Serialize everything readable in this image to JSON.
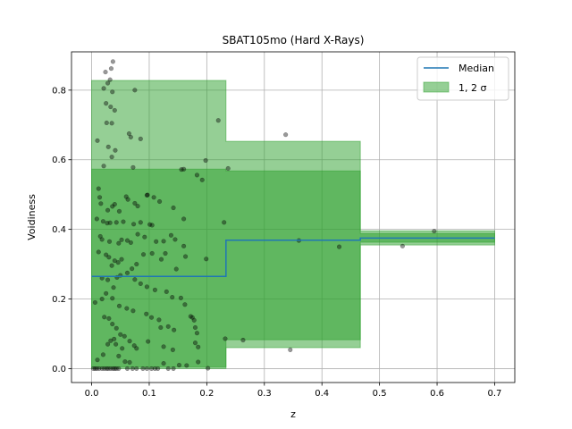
{
  "chart_data": {
    "type": "line",
    "title": "SBAT105mo (Hard X-Rays)",
    "xlabel": "z",
    "ylabel": "Voidiness",
    "xlim": [
      -0.035,
      0.735
    ],
    "ylim": [
      -0.04,
      0.91
    ],
    "x_ticks": [
      0.0,
      0.1,
      0.2,
      0.3,
      0.4,
      0.5,
      0.6,
      0.7
    ],
    "x_tick_labels": [
      "0.0",
      "0.1",
      "0.2",
      "0.3",
      "0.4",
      "0.5",
      "0.6",
      "0.7"
    ],
    "y_ticks": [
      0.0,
      0.2,
      0.4,
      0.6,
      0.8
    ],
    "y_tick_labels": [
      "0.0",
      "0.2",
      "0.4",
      "0.6",
      "0.8"
    ],
    "grid": true,
    "legend_position": "top-right",
    "legend": [
      {
        "label": "Median",
        "kind": "line",
        "color": "#1f77b4"
      },
      {
        "label": "1, 2 σ",
        "kind": "patch",
        "color": "#2ca02c"
      }
    ],
    "bins": [
      {
        "x0": 0.0,
        "x1": 0.2333,
        "median": 0.265,
        "s1_low": 0.005,
        "s1_high": 0.573,
        "s2_low": 0.0,
        "s2_high": 0.828
      },
      {
        "x0": 0.2333,
        "x1": 0.4667,
        "median": 0.369,
        "s1_low": 0.083,
        "s1_high": 0.568,
        "s2_low": 0.06,
        "s2_high": 0.653
      },
      {
        "x0": 0.4667,
        "x1": 0.7,
        "median": 0.375,
        "s1_low": 0.363,
        "s1_high": 0.388,
        "s2_low": 0.355,
        "s2_high": 0.396
      }
    ],
    "scatter": {
      "color": "#000000",
      "alpha": 0.4,
      "points": [
        [
          0.037,
          0.882
        ],
        [
          0.024,
          0.852
        ],
        [
          0.034,
          0.862
        ],
        [
          0.032,
          0.83
        ],
        [
          0.028,
          0.82
        ],
        [
          0.036,
          0.795
        ],
        [
          0.021,
          0.805
        ],
        [
          0.075,
          0.8
        ],
        [
          0.22,
          0.713
        ],
        [
          0.025,
          0.762
        ],
        [
          0.033,
          0.752
        ],
        [
          0.04,
          0.742
        ],
        [
          0.026,
          0.706
        ],
        [
          0.035,
          0.705
        ],
        [
          0.065,
          0.675
        ],
        [
          0.068,
          0.665
        ],
        [
          0.085,
          0.66
        ],
        [
          0.337,
          0.672
        ],
        [
          0.029,
          0.637
        ],
        [
          0.041,
          0.627
        ],
        [
          0.01,
          0.655
        ],
        [
          0.021,
          0.582
        ],
        [
          0.035,
          0.608
        ],
        [
          0.072,
          0.578
        ],
        [
          0.156,
          0.572
        ],
        [
          0.16,
          0.573
        ],
        [
          0.183,
          0.556
        ],
        [
          0.192,
          0.542
        ],
        [
          0.198,
          0.598
        ],
        [
          0.237,
          0.575
        ],
        [
          0.012,
          0.517
        ],
        [
          0.014,
          0.492
        ],
        [
          0.016,
          0.474
        ],
        [
          0.028,
          0.455
        ],
        [
          0.036,
          0.466
        ],
        [
          0.04,
          0.472
        ],
        [
          0.048,
          0.452
        ],
        [
          0.06,
          0.494
        ],
        [
          0.063,
          0.486
        ],
        [
          0.075,
          0.475
        ],
        [
          0.08,
          0.467
        ],
        [
          0.096,
          0.498
        ],
        [
          0.097,
          0.499
        ],
        [
          0.108,
          0.492
        ],
        [
          0.118,
          0.48
        ],
        [
          0.142,
          0.462
        ],
        [
          0.16,
          0.43
        ],
        [
          0.009,
          0.43
        ],
        [
          0.02,
          0.423
        ],
        [
          0.027,
          0.418
        ],
        [
          0.032,
          0.419
        ],
        [
          0.043,
          0.42
        ],
        [
          0.055,
          0.422
        ],
        [
          0.073,
          0.415
        ],
        [
          0.085,
          0.42
        ],
        [
          0.101,
          0.414
        ],
        [
          0.105,
          0.412
        ],
        [
          0.23,
          0.42
        ],
        [
          0.015,
          0.38
        ],
        [
          0.018,
          0.371
        ],
        [
          0.031,
          0.365
        ],
        [
          0.047,
          0.36
        ],
        [
          0.052,
          0.37
        ],
        [
          0.062,
          0.368
        ],
        [
          0.068,
          0.362
        ],
        [
          0.08,
          0.386
        ],
        [
          0.092,
          0.378
        ],
        [
          0.112,
          0.365
        ],
        [
          0.125,
          0.366
        ],
        [
          0.138,
          0.383
        ],
        [
          0.145,
          0.371
        ],
        [
          0.16,
          0.352
        ],
        [
          0.199,
          0.315
        ],
        [
          0.36,
          0.368
        ],
        [
          0.43,
          0.35
        ],
        [
          0.54,
          0.352
        ],
        [
          0.595,
          0.395
        ],
        [
          0.012,
          0.335
        ],
        [
          0.025,
          0.327
        ],
        [
          0.03,
          0.32
        ],
        [
          0.035,
          0.296
        ],
        [
          0.04,
          0.31
        ],
        [
          0.046,
          0.305
        ],
        [
          0.052,
          0.314
        ],
        [
          0.07,
          0.287
        ],
        [
          0.078,
          0.3
        ],
        [
          0.09,
          0.328
        ],
        [
          0.105,
          0.331
        ],
        [
          0.121,
          0.314
        ],
        [
          0.128,
          0.331
        ],
        [
          0.147,
          0.286
        ],
        [
          0.163,
          0.322
        ],
        [
          0.018,
          0.26
        ],
        [
          0.028,
          0.255
        ],
        [
          0.038,
          0.233
        ],
        [
          0.044,
          0.262
        ],
        [
          0.05,
          0.268
        ],
        [
          0.062,
          0.275
        ],
        [
          0.075,
          0.256
        ],
        [
          0.085,
          0.244
        ],
        [
          0.096,
          0.235
        ],
        [
          0.11,
          0.226
        ],
        [
          0.13,
          0.221
        ],
        [
          0.14,
          0.205
        ],
        [
          0.155,
          0.203
        ],
        [
          0.162,
          0.184
        ],
        [
          0.006,
          0.19
        ],
        [
          0.018,
          0.2
        ],
        [
          0.025,
          0.216
        ],
        [
          0.036,
          0.202
        ],
        [
          0.048,
          0.18
        ],
        [
          0.061,
          0.173
        ],
        [
          0.072,
          0.166
        ],
        [
          0.095,
          0.157
        ],
        [
          0.104,
          0.147
        ],
        [
          0.117,
          0.14
        ],
        [
          0.12,
          0.118
        ],
        [
          0.133,
          0.121
        ],
        [
          0.143,
          0.111
        ],
        [
          0.172,
          0.15
        ],
        [
          0.175,
          0.147
        ],
        [
          0.178,
          0.139
        ],
        [
          0.18,
          0.118
        ],
        [
          0.183,
          0.102
        ],
        [
          0.022,
          0.148
        ],
        [
          0.03,
          0.144
        ],
        [
          0.036,
          0.128
        ],
        [
          0.043,
          0.116
        ],
        [
          0.05,
          0.098
        ],
        [
          0.057,
          0.093
        ],
        [
          0.066,
          0.079
        ],
        [
          0.074,
          0.066
        ],
        [
          0.078,
          0.058
        ],
        [
          0.098,
          0.078
        ],
        [
          0.125,
          0.063
        ],
        [
          0.141,
          0.054
        ],
        [
          0.18,
          0.074
        ],
        [
          0.185,
          0.062
        ],
        [
          0.232,
          0.086
        ],
        [
          0.263,
          0.082
        ],
        [
          0.345,
          0.054
        ],
        [
          0.01,
          0.025
        ],
        [
          0.02,
          0.04
        ],
        [
          0.028,
          0.07
        ],
        [
          0.033,
          0.08
        ],
        [
          0.039,
          0.085
        ],
        [
          0.042,
          0.07
        ],
        [
          0.047,
          0.036
        ],
        [
          0.053,
          0.058
        ],
        [
          0.058,
          0.02
        ],
        [
          0.066,
          0.018
        ],
        [
          0.125,
          0.015
        ],
        [
          0.152,
          0.01
        ],
        [
          0.165,
          0.009
        ],
        [
          0.185,
          0.019
        ],
        [
          0.202,
          0.001
        ],
        [
          0.003,
          0.0
        ],
        [
          0.006,
          0.0
        ],
        [
          0.009,
          0.0
        ],
        [
          0.013,
          0.0
        ],
        [
          0.018,
          0.0
        ],
        [
          0.022,
          0.0
        ],
        [
          0.026,
          0.0
        ],
        [
          0.029,
          0.0
        ],
        [
          0.033,
          0.0
        ],
        [
          0.037,
          0.0
        ],
        [
          0.04,
          0.0
        ],
        [
          0.043,
          0.0
        ],
        [
          0.047,
          0.0
        ],
        [
          0.062,
          0.0
        ],
        [
          0.071,
          0.0
        ],
        [
          0.078,
          0.0
        ],
        [
          0.089,
          0.0
        ],
        [
          0.096,
          0.0
        ],
        [
          0.104,
          0.0
        ],
        [
          0.11,
          0.0
        ],
        [
          0.115,
          0.0
        ],
        [
          0.133,
          0.0
        ],
        [
          0.142,
          0.0
        ]
      ]
    }
  }
}
